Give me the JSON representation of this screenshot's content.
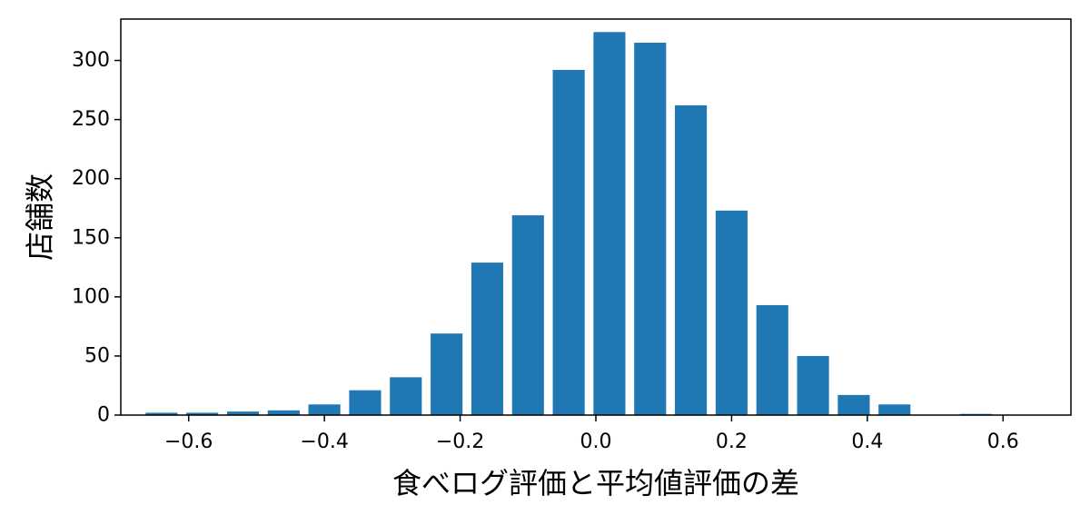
{
  "chart_data": {
    "type": "bar",
    "xlabel": "食べログ評価と平均値評価の差",
    "ylabel": "店舗数",
    "xlim": [
      -0.7,
      0.7
    ],
    "ylim": [
      0,
      335
    ],
    "xticks": [
      -0.6,
      -0.4,
      -0.2,
      0.0,
      0.2,
      0.4,
      0.6
    ],
    "xtick_labels": [
      "−0.6",
      "−0.4",
      "−0.2",
      "0.0",
      "0.2",
      "0.4",
      "0.6"
    ],
    "yticks": [
      0,
      50,
      100,
      150,
      200,
      250,
      300
    ],
    "ytick_labels": [
      "0",
      "50",
      "100",
      "150",
      "200",
      "250",
      "300"
    ],
    "bar_width": 0.047,
    "bar_color": "#1f77b4",
    "grid": false,
    "x": [
      -0.64,
      -0.58,
      -0.52,
      -0.46,
      -0.4,
      -0.34,
      -0.28,
      -0.22,
      -0.16,
      -0.1,
      -0.04,
      0.02,
      0.08,
      0.14,
      0.2,
      0.26,
      0.32,
      0.38,
      0.44,
      0.5,
      0.56
    ],
    "values": [
      2,
      2,
      3,
      4,
      9,
      21,
      32,
      69,
      129,
      169,
      292,
      324,
      315,
      262,
      173,
      93,
      50,
      17,
      9,
      0,
      1
    ]
  }
}
